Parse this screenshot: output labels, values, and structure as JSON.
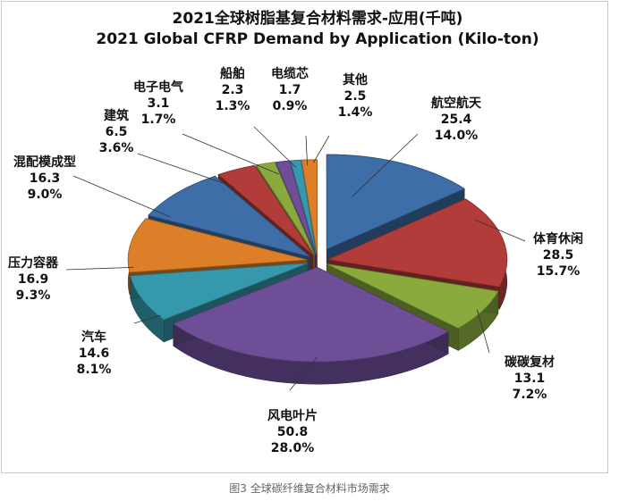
{
  "caption": "图3  全球碳纤维复合材料市场需求",
  "chart_data": {
    "type": "pie",
    "title": "2021全球树脂基复合材料需求-应用(千吨)",
    "subtitle": "2021 Global CFRP Demand by Application (Kilo-ton)",
    "slices": [
      {
        "label": "航空航天",
        "value": 25.4,
        "percent": "14.0%",
        "color": "#3e6ea8"
      },
      {
        "label": "体育休闲",
        "value": 28.5,
        "percent": "15.7%",
        "color": "#b13c39"
      },
      {
        "label": "碳碳复材",
        "value": 13.1,
        "percent": "7.2%",
        "color": "#8aaa3e"
      },
      {
        "label": "风电叶片",
        "value": 50.8,
        "percent": "28.0%",
        "color": "#6d4e97"
      },
      {
        "label": "汽车",
        "value": 14.6,
        "percent": "8.1%",
        "color": "#3598ab"
      },
      {
        "label": "压力容器",
        "value": 16.9,
        "percent": "9.3%",
        "color": "#dc7f28"
      },
      {
        "label": "混配模成型",
        "value": 16.3,
        "percent": "9.0%",
        "color": "#3e6ea8"
      },
      {
        "label": "建筑",
        "value": 6.5,
        "percent": "3.6%",
        "color": "#b13c39"
      },
      {
        "label": "电子电气",
        "value": 3.1,
        "percent": "1.7%",
        "color": "#8aaa3e"
      },
      {
        "label": "船舶",
        "value": 2.3,
        "percent": "1.3%",
        "color": "#6d4e97"
      },
      {
        "label": "电缆芯",
        "value": 1.7,
        "percent": "0.9%",
        "color": "#3598ab"
      },
      {
        "label": "其他",
        "value": 2.5,
        "percent": "1.4%",
        "color": "#dc7f28"
      }
    ]
  }
}
